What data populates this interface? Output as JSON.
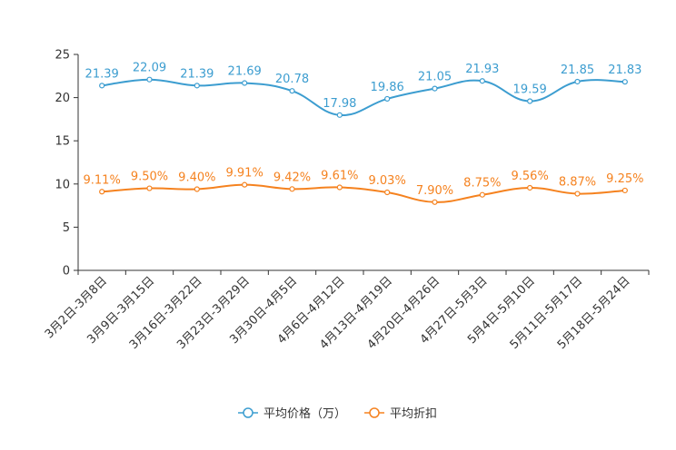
{
  "chart_data": {
    "type": "line",
    "title": "",
    "xlabel": "",
    "ylabel": "",
    "ylim": [
      0,
      25
    ],
    "yticks": [
      0,
      5,
      10,
      15,
      20,
      25
    ],
    "categories": [
      "3月2日-3月8日",
      "3月9日-3月15日",
      "3月16日-3月22日",
      "3月23日-3月29日",
      "3月30日-4月5日",
      "4月6日-4月12日",
      "4月13日-4月19日",
      "4月20日-4月26日",
      "4月27日-5月3日",
      "5月4日-5月10日",
      "5月11日-5月17日",
      "5月18日-5月24日"
    ],
    "series": [
      {
        "name": "平均价格（万）",
        "color": "#3c9dd0",
        "values": [
          21.39,
          22.09,
          21.39,
          21.69,
          20.78,
          17.98,
          19.86,
          21.05,
          21.93,
          19.59,
          21.85,
          21.83
        ],
        "labels": [
          "21.39",
          "22.09",
          "21.39",
          "21.69",
          "20.78",
          "17.98",
          "19.86",
          "21.05",
          "21.93",
          "19.59",
          "21.85",
          "21.83"
        ]
      },
      {
        "name": "平均折扣",
        "color": "#f5821f",
        "values": [
          9.11,
          9.5,
          9.4,
          9.91,
          9.42,
          9.61,
          9.03,
          7.9,
          8.75,
          9.56,
          8.87,
          9.25
        ],
        "labels": [
          "9.11%",
          "9.50%",
          "9.40%",
          "9.91%",
          "9.42%",
          "9.61%",
          "9.03%",
          "7.90%",
          "8.75%",
          "9.56%",
          "8.87%",
          "9.25%"
        ]
      }
    ],
    "legend": "bottom",
    "grid": false
  }
}
